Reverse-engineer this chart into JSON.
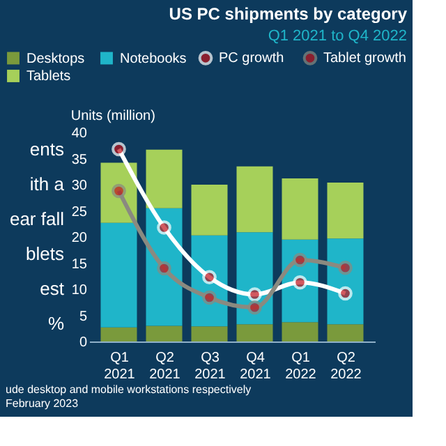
{
  "chart_data": {
    "type": "bar",
    "title": "US PC shipments by category",
    "subtitle": "Q1 2021 to Q4 2022",
    "ylabel": "Units (million)",
    "categories": [
      "Q1 2021",
      "Q2 2021",
      "Q3 2021",
      "Q4 2021",
      "Q1 2022",
      "Q2 2022"
    ],
    "stacked": true,
    "series": [
      {
        "name": "Desktops",
        "color": "#7a9a3c",
        "values": [
          2.7,
          3.0,
          2.9,
          3.3,
          3.7,
          3.3
        ]
      },
      {
        "name": "Notebooks",
        "color": "#1fb5c9",
        "values": [
          20.0,
          22.5,
          17.4,
          17.6,
          15.8,
          16.4
        ]
      },
      {
        "name": "Tablets",
        "color": "#a6d05a",
        "values": [
          11.5,
          11.2,
          9.7,
          12.6,
          11.7,
          10.7
        ]
      },
      {
        "name": "PC growth",
        "type": "line",
        "color": "#ffffff",
        "values": [
          36.8,
          21.8,
          12.3,
          9.0,
          11.3,
          9.2
        ]
      },
      {
        "name": "Tablet growth",
        "type": "line",
        "color": "#8a8a80",
        "values": [
          28.8,
          14.0,
          8.4,
          6.5,
          15.6,
          14.1
        ]
      }
    ],
    "ylim": [
      0,
      40
    ],
    "yticks": [
      0,
      5,
      10,
      15,
      20,
      25,
      30,
      35,
      40
    ],
    "grid": false,
    "legend": "top",
    "marker": "circle",
    "line_style": "solid",
    "annotations": [
      "ents",
      "ith a",
      "ear fall",
      "blets",
      "est",
      "%",
      "ude desktop and mobile workstations respectively",
      "February 2023"
    ]
  }
}
